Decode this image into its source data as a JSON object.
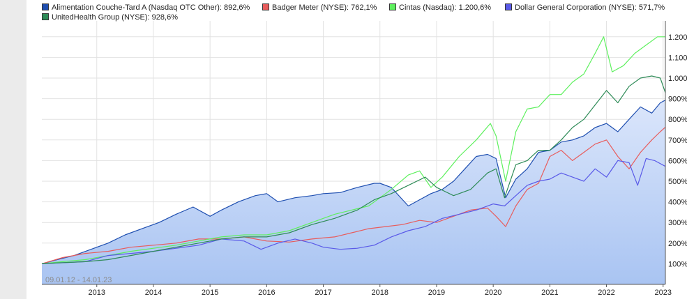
{
  "legend": [
    {
      "label": "Alimentation Couche-Tard A (Nasdaq OTC Other): 892,6%",
      "color": "#1f4fb0"
    },
    {
      "label": "Badger Meter (NYSE): 762,1%",
      "color": "#e85c5c"
    },
    {
      "label": "Cintas (Nasdaq): 1.200,6%",
      "color": "#5ef05e"
    },
    {
      "label": "Dollar General Corporation (NYSE): 571,7%",
      "color": "#5a5ae8"
    },
    {
      "label": "UnitedHealth Group (NYSE): 928,6%",
      "color": "#2e8b57"
    }
  ],
  "range_label": "09.01.12 - 14.01.23",
  "chart_data": {
    "type": "line",
    "x_ticks": [
      "2013",
      "2014",
      "2015",
      "2016",
      "2017",
      "2018",
      "2019",
      "2020",
      "2021",
      "2022",
      "2023"
    ],
    "y_ticks": [
      "100%",
      "200%",
      "300%",
      "400%",
      "500%",
      "600%",
      "700%",
      "800%",
      "900%",
      "1.000%",
      "1.100%",
      "1.200%"
    ],
    "xlim": [
      2012.03,
      2023.04
    ],
    "ylim": [
      0,
      1250
    ],
    "grid": true,
    "legend_position": "top",
    "series": [
      {
        "name": "Alimentation Couche-Tard A (Nasdaq OTC Other)",
        "color": "#1f4fb0",
        "fill": true,
        "points": [
          [
            2012.03,
            100
          ],
          [
            2012.3,
            120
          ],
          [
            2012.6,
            140
          ],
          [
            2012.9,
            170
          ],
          [
            2013.2,
            200
          ],
          [
            2013.5,
            240
          ],
          [
            2013.8,
            270
          ],
          [
            2014.1,
            300
          ],
          [
            2014.4,
            340
          ],
          [
            2014.7,
            375
          ],
          [
            2015.0,
            330
          ],
          [
            2015.2,
            360
          ],
          [
            2015.5,
            400
          ],
          [
            2015.8,
            430
          ],
          [
            2016.0,
            440
          ],
          [
            2016.2,
            400
          ],
          [
            2016.5,
            420
          ],
          [
            2016.8,
            430
          ],
          [
            2017.0,
            440
          ],
          [
            2017.3,
            445
          ],
          [
            2017.6,
            470
          ],
          [
            2017.9,
            490
          ],
          [
            2018.0,
            490
          ],
          [
            2018.2,
            470
          ],
          [
            2018.5,
            380
          ],
          [
            2018.7,
            410
          ],
          [
            2018.9,
            440
          ],
          [
            2019.1,
            460
          ],
          [
            2019.3,
            500
          ],
          [
            2019.5,
            560
          ],
          [
            2019.7,
            620
          ],
          [
            2019.9,
            630
          ],
          [
            2020.05,
            610
          ],
          [
            2020.22,
            420
          ],
          [
            2020.4,
            510
          ],
          [
            2020.6,
            560
          ],
          [
            2020.8,
            640
          ],
          [
            2021.0,
            650
          ],
          [
            2021.2,
            690
          ],
          [
            2021.4,
            700
          ],
          [
            2021.6,
            720
          ],
          [
            2021.8,
            760
          ],
          [
            2022.0,
            780
          ],
          [
            2022.2,
            740
          ],
          [
            2022.4,
            800
          ],
          [
            2022.6,
            860
          ],
          [
            2022.8,
            830
          ],
          [
            2022.95,
            880
          ],
          [
            2023.04,
            893
          ]
        ]
      },
      {
        "name": "Badger Meter (NYSE)",
        "color": "#e85c5c",
        "fill": false,
        "points": [
          [
            2012.03,
            100
          ],
          [
            2012.4,
            130
          ],
          [
            2012.8,
            150
          ],
          [
            2013.2,
            160
          ],
          [
            2013.6,
            180
          ],
          [
            2014.0,
            190
          ],
          [
            2014.4,
            200
          ],
          [
            2014.8,
            220
          ],
          [
            2015.2,
            220
          ],
          [
            2015.6,
            230
          ],
          [
            2016.0,
            210
          ],
          [
            2016.4,
            205
          ],
          [
            2016.8,
            220
          ],
          [
            2017.2,
            230
          ],
          [
            2017.5,
            250
          ],
          [
            2017.8,
            270
          ],
          [
            2018.1,
            280
          ],
          [
            2018.4,
            290
          ],
          [
            2018.7,
            310
          ],
          [
            2019.0,
            300
          ],
          [
            2019.3,
            330
          ],
          [
            2019.6,
            360
          ],
          [
            2019.9,
            370
          ],
          [
            2020.05,
            330
          ],
          [
            2020.22,
            280
          ],
          [
            2020.4,
            380
          ],
          [
            2020.6,
            460
          ],
          [
            2020.8,
            490
          ],
          [
            2021.0,
            620
          ],
          [
            2021.2,
            650
          ],
          [
            2021.4,
            600
          ],
          [
            2021.6,
            640
          ],
          [
            2021.8,
            680
          ],
          [
            2022.0,
            700
          ],
          [
            2022.2,
            620
          ],
          [
            2022.4,
            560
          ],
          [
            2022.6,
            640
          ],
          [
            2022.8,
            700
          ],
          [
            2022.95,
            740
          ],
          [
            2023.04,
            762
          ]
        ]
      },
      {
        "name": "Cintas (Nasdaq)",
        "color": "#5ef05e",
        "fill": false,
        "points": [
          [
            2012.03,
            100
          ],
          [
            2012.4,
            110
          ],
          [
            2012.8,
            120
          ],
          [
            2013.2,
            140
          ],
          [
            2013.6,
            160
          ],
          [
            2014.0,
            175
          ],
          [
            2014.4,
            190
          ],
          [
            2014.8,
            210
          ],
          [
            2015.2,
            230
          ],
          [
            2015.6,
            240
          ],
          [
            2016.0,
            240
          ],
          [
            2016.4,
            260
          ],
          [
            2016.8,
            300
          ],
          [
            2017.2,
            340
          ],
          [
            2017.5,
            360
          ],
          [
            2017.8,
            380
          ],
          [
            2018.0,
            420
          ],
          [
            2018.2,
            460
          ],
          [
            2018.5,
            530
          ],
          [
            2018.7,
            550
          ],
          [
            2018.9,
            470
          ],
          [
            2019.1,
            520
          ],
          [
            2019.4,
            620
          ],
          [
            2019.7,
            700
          ],
          [
            2019.95,
            780
          ],
          [
            2020.05,
            720
          ],
          [
            2020.22,
            500
          ],
          [
            2020.4,
            740
          ],
          [
            2020.6,
            850
          ],
          [
            2020.8,
            860
          ],
          [
            2021.0,
            920
          ],
          [
            2021.2,
            920
          ],
          [
            2021.4,
            980
          ],
          [
            2021.6,
            1020
          ],
          [
            2021.8,
            1120
          ],
          [
            2021.95,
            1200
          ],
          [
            2022.1,
            1030
          ],
          [
            2022.3,
            1060
          ],
          [
            2022.5,
            1120
          ],
          [
            2022.7,
            1160
          ],
          [
            2022.9,
            1200
          ],
          [
            2023.04,
            1200
          ]
        ]
      },
      {
        "name": "Dollar General Corporation (NYSE)",
        "color": "#5a5ae8",
        "fill": false,
        "points": [
          [
            2012.03,
            100
          ],
          [
            2012.4,
            105
          ],
          [
            2012.8,
            110
          ],
          [
            2013.2,
            140
          ],
          [
            2013.6,
            150
          ],
          [
            2014.0,
            160
          ],
          [
            2014.4,
            175
          ],
          [
            2014.8,
            190
          ],
          [
            2015.2,
            220
          ],
          [
            2015.6,
            210
          ],
          [
            2015.9,
            170
          ],
          [
            2016.2,
            200
          ],
          [
            2016.5,
            220
          ],
          [
            2016.8,
            200
          ],
          [
            2017.0,
            180
          ],
          [
            2017.3,
            170
          ],
          [
            2017.6,
            175
          ],
          [
            2017.9,
            190
          ],
          [
            2018.2,
            230
          ],
          [
            2018.5,
            260
          ],
          [
            2018.8,
            280
          ],
          [
            2019.1,
            320
          ],
          [
            2019.4,
            340
          ],
          [
            2019.7,
            360
          ],
          [
            2020.0,
            390
          ],
          [
            2020.2,
            380
          ],
          [
            2020.4,
            430
          ],
          [
            2020.6,
            480
          ],
          [
            2020.8,
            500
          ],
          [
            2021.0,
            510
          ],
          [
            2021.2,
            540
          ],
          [
            2021.4,
            520
          ],
          [
            2021.6,
            500
          ],
          [
            2021.8,
            560
          ],
          [
            2022.0,
            520
          ],
          [
            2022.2,
            600
          ],
          [
            2022.4,
            590
          ],
          [
            2022.55,
            480
          ],
          [
            2022.7,
            610
          ],
          [
            2022.85,
            600
          ],
          [
            2023.04,
            572
          ]
        ]
      },
      {
        "name": "UnitedHealth Group (NYSE)",
        "color": "#2e8b57",
        "fill": false,
        "points": [
          [
            2012.03,
            100
          ],
          [
            2012.4,
            105
          ],
          [
            2012.8,
            110
          ],
          [
            2013.2,
            120
          ],
          [
            2013.6,
            140
          ],
          [
            2014.0,
            160
          ],
          [
            2014.4,
            180
          ],
          [
            2014.8,
            200
          ],
          [
            2015.2,
            220
          ],
          [
            2015.6,
            230
          ],
          [
            2016.0,
            230
          ],
          [
            2016.4,
            250
          ],
          [
            2016.8,
            290
          ],
          [
            2017.2,
            320
          ],
          [
            2017.6,
            360
          ],
          [
            2017.9,
            410
          ],
          [
            2018.2,
            440
          ],
          [
            2018.5,
            480
          ],
          [
            2018.8,
            520
          ],
          [
            2019.0,
            470
          ],
          [
            2019.3,
            430
          ],
          [
            2019.6,
            460
          ],
          [
            2019.9,
            540
          ],
          [
            2020.05,
            560
          ],
          [
            2020.2,
            420
          ],
          [
            2020.4,
            580
          ],
          [
            2020.6,
            600
          ],
          [
            2020.8,
            650
          ],
          [
            2021.0,
            650
          ],
          [
            2021.2,
            700
          ],
          [
            2021.4,
            760
          ],
          [
            2021.6,
            800
          ],
          [
            2021.8,
            870
          ],
          [
            2022.0,
            940
          ],
          [
            2022.2,
            880
          ],
          [
            2022.4,
            960
          ],
          [
            2022.6,
            1000
          ],
          [
            2022.8,
            1010
          ],
          [
            2022.95,
            1000
          ],
          [
            2023.04,
            929
          ]
        ]
      }
    ]
  }
}
